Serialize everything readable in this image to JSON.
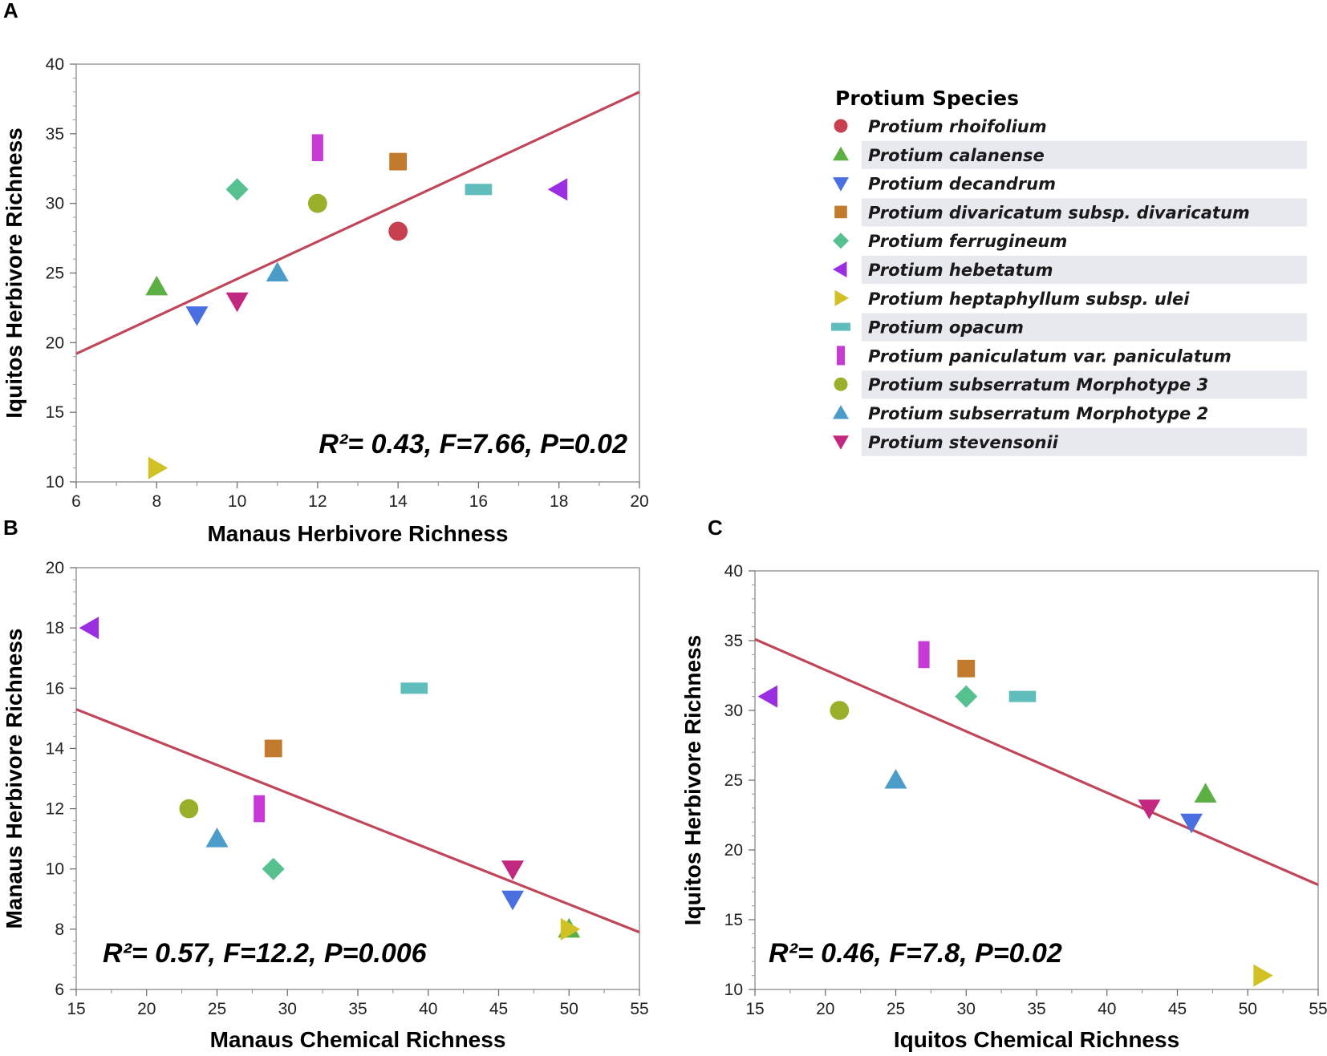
{
  "species": [
    {
      "name": "Protium rhoifolium",
      "shape": "circle",
      "color": "#c8404f"
    },
    {
      "name": "Protium calanense",
      "shape": "triangle-up",
      "color": "#5cb043"
    },
    {
      "name": "Protium decandrum",
      "shape": "triangle-down",
      "color": "#4a6fe0"
    },
    {
      "name": "Protium divaricatum  subsp. divaricatum",
      "shape": "square",
      "color": "#c27a2c"
    },
    {
      "name": "Protium ferrugineum",
      "shape": "diamond",
      "color": "#56c08f"
    },
    {
      "name": "Protium hebetatum",
      "shape": "triangle-left",
      "color": "#9b2ee0"
    },
    {
      "name": "Protium heptaphyllum subsp. ulei",
      "shape": "triangle-right",
      "color": "#d2c125"
    },
    {
      "name": "Protium opacum",
      "shape": "hbar",
      "color": "#5fbdbb"
    },
    {
      "name": "Protium paniculatum var. paniculatum",
      "shape": "vbar",
      "color": "#c83ad6"
    },
    {
      "name": "Protium subserratum Morphotype 3",
      "shape": "circle",
      "color": "#9aaf2a"
    },
    {
      "name": "Protium subserratum Morphotype 2",
      "shape": "triangle-up",
      "color": "#4b9cc9"
    },
    {
      "name": "Protium stevensonii",
      "shape": "triangle-down",
      "color": "#c2287f"
    }
  ],
  "legend": {
    "title": "Protium Species"
  },
  "line_color": "#c0475a",
  "chart_data": [
    {
      "type": "scatter",
      "panel_label": "A",
      "xlabel": "Manaus Herbivore Richness",
      "ylabel": "Iquitos Herbivore Richness",
      "xlim": [
        6,
        20
      ],
      "ylim": [
        10,
        40
      ],
      "xticks": [
        6,
        8,
        10,
        12,
        14,
        16,
        18,
        20
      ],
      "yticks": [
        10,
        15,
        20,
        25,
        30,
        35,
        40
      ],
      "stat_text": "R²= 0.43, F=7.66, P=0.02",
      "fit_line": {
        "x": [
          6,
          20
        ],
        "y": [
          19.2,
          38
        ]
      },
      "points": [
        {
          "species": 0,
          "x": 14,
          "y": 28
        },
        {
          "species": 1,
          "x": 8,
          "y": 24
        },
        {
          "species": 2,
          "x": 9,
          "y": 22
        },
        {
          "species": 3,
          "x": 14,
          "y": 33
        },
        {
          "species": 4,
          "x": 10,
          "y": 31
        },
        {
          "species": 5,
          "x": 18,
          "y": 31
        },
        {
          "species": 6,
          "x": 8,
          "y": 11
        },
        {
          "species": 7,
          "x": 16,
          "y": 31
        },
        {
          "species": 8,
          "x": 12,
          "y": 34
        },
        {
          "species": 9,
          "x": 12,
          "y": 30
        },
        {
          "species": 10,
          "x": 11,
          "y": 25
        },
        {
          "species": 11,
          "x": 10,
          "y": 23
        }
      ]
    },
    {
      "type": "scatter",
      "panel_label": "B",
      "xlabel": "Manaus Chemical Richness",
      "ylabel": "Manaus Herbivore Richness",
      "xlim": [
        15,
        55
      ],
      "ylim": [
        6,
        20
      ],
      "xticks": [
        15,
        20,
        25,
        30,
        35,
        40,
        45,
        50,
        55
      ],
      "yticks": [
        6,
        8,
        10,
        12,
        14,
        16,
        18,
        20
      ],
      "stat_text": "R²= 0.57, F=12.2, P=0.006",
      "fit_line": {
        "x": [
          15,
          55
        ],
        "y": [
          15.3,
          7.9
        ]
      },
      "points": [
        {
          "species": 1,
          "x": 50,
          "y": 8
        },
        {
          "species": 2,
          "x": 46,
          "y": 9
        },
        {
          "species": 3,
          "x": 29,
          "y": 14
        },
        {
          "species": 4,
          "x": 29,
          "y": 10
        },
        {
          "species": 5,
          "x": 16,
          "y": 18
        },
        {
          "species": 6,
          "x": 50,
          "y": 8
        },
        {
          "species": 7,
          "x": 39,
          "y": 16
        },
        {
          "species": 8,
          "x": 28,
          "y": 12
        },
        {
          "species": 9,
          "x": 23,
          "y": 12
        },
        {
          "species": 10,
          "x": 25,
          "y": 11
        },
        {
          "species": 11,
          "x": 46,
          "y": 10
        }
      ]
    },
    {
      "type": "scatter",
      "panel_label": "C",
      "xlabel": "Iquitos Chemical Richness",
      "ylabel": "Iquitos Herbivore Richness",
      "xlim": [
        15,
        55
      ],
      "ylim": [
        10,
        40
      ],
      "xticks": [
        15,
        20,
        25,
        30,
        35,
        40,
        45,
        50,
        55
      ],
      "yticks": [
        10,
        15,
        20,
        25,
        30,
        35,
        40
      ],
      "stat_text": "R²= 0.46, F=7.8, P=0.02",
      "fit_line": {
        "x": [
          15,
          55
        ],
        "y": [
          35.1,
          17.5
        ]
      },
      "points": [
        {
          "species": 1,
          "x": 47,
          "y": 24
        },
        {
          "species": 2,
          "x": 46,
          "y": 22
        },
        {
          "species": 3,
          "x": 30,
          "y": 33
        },
        {
          "species": 4,
          "x": 30,
          "y": 31
        },
        {
          "species": 5,
          "x": 16,
          "y": 31
        },
        {
          "species": 6,
          "x": 51,
          "y": 11
        },
        {
          "species": 7,
          "x": 34,
          "y": 31
        },
        {
          "species": 8,
          "x": 27,
          "y": 34
        },
        {
          "species": 9,
          "x": 21,
          "y": 30
        },
        {
          "species": 10,
          "x": 25,
          "y": 25
        },
        {
          "species": 11,
          "x": 43,
          "y": 23
        }
      ]
    }
  ]
}
